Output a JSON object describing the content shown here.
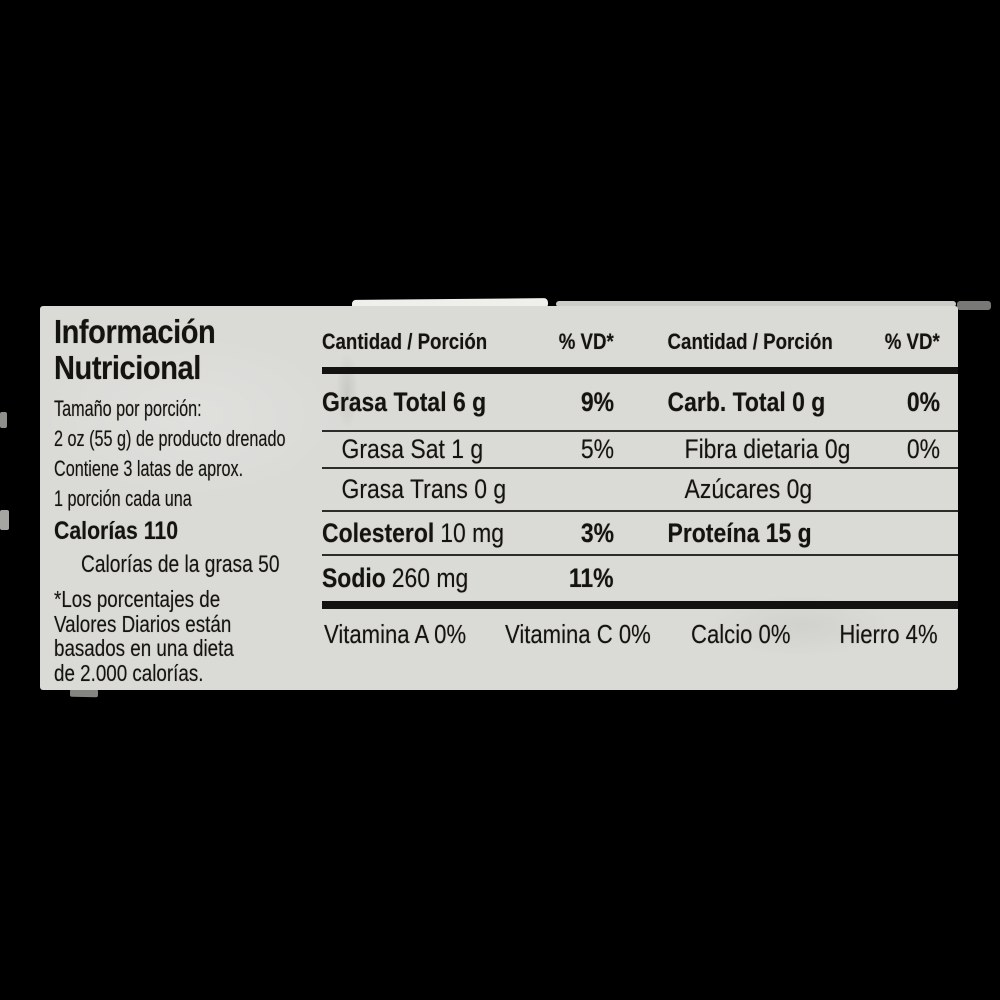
{
  "label": {
    "title_line1": "Información",
    "title_line2": "Nutricional",
    "serving_lines": [
      "Tamaño por porción:",
      "2 oz (55 g) de producto drenado",
      "Contiene 3 latas de aprox.",
      "1 porción cada una"
    ],
    "calories_line": "Calorías 110",
    "calories_fat_line": "Calorías de la grasa 50",
    "footnote_lines": [
      "*Los porcentajes de",
      "Valores Diarios están",
      "basados en una dieta",
      "de 2.000 calorías."
    ]
  },
  "table": {
    "header_amount": "Cantidad / Porción",
    "header_dv": "% VD*",
    "rows": [
      {
        "l_bold": "Grasa Total 6 g",
        "l_reg": "",
        "l_pct": "9%",
        "r_bold": "Carb. Total 0 g",
        "r_reg": "",
        "r_pct": "0%"
      },
      {
        "l_bold": "",
        "l_reg": "Grasa Sat 1 g",
        "l_pct": "5%",
        "r_bold": "",
        "r_reg": "Fibra dietaria 0g",
        "r_pct": "0%"
      },
      {
        "l_bold": "",
        "l_reg": "Grasa Trans 0 g",
        "l_pct": "",
        "r_bold": "",
        "r_reg": "Azúcares 0g",
        "r_pct": ""
      },
      {
        "l_bold": "Colesterol",
        "l_reg": "10 mg",
        "l_pct": "3%",
        "r_bold": "Proteína 15 g",
        "r_reg": "",
        "r_pct": ""
      },
      {
        "l_bold": "Sodio",
        "l_reg": "260 mg",
        "l_pct": "11%",
        "r_bold": "",
        "r_reg": "",
        "r_pct": ""
      }
    ],
    "vitamins": [
      "Vitamina A 0%",
      "Vitamina C 0%",
      "Calcio 0%",
      "Hierro 4%"
    ]
  },
  "colors": {
    "background": "#000000",
    "label_bg": "#dadad7",
    "text": "#15130f"
  }
}
